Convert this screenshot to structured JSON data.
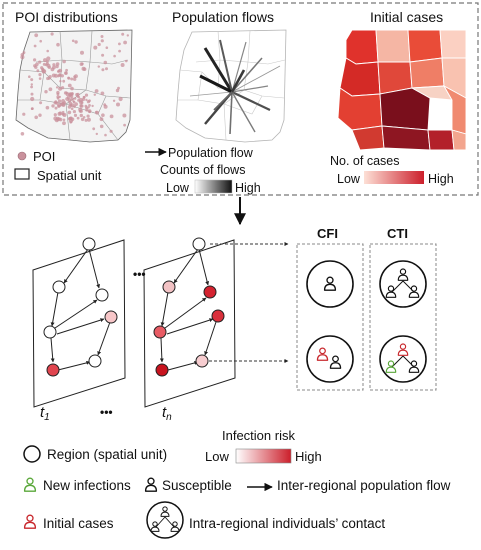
{
  "top_panel": {
    "poi": {
      "title": "POI distributions",
      "legend_poi": "POI",
      "legend_unit": "Spatial unit"
    },
    "flows": {
      "title": "Population flows",
      "legend_flow": "Population flow",
      "legend_counts": "Counts of flows",
      "low": "Low",
      "high": "High"
    },
    "cases": {
      "title": "Initial cases",
      "legend_title": "No. of cases",
      "low": "Low",
      "high": "High"
    }
  },
  "middle": {
    "ellipsis_top": "•••",
    "ellipsis_bottom": "•••",
    "label_t1": "t",
    "label_t1_sub": "1",
    "label_tn": "t",
    "label_tn_sub": "n",
    "cfi_label": "CFI",
    "cti_label": "CTI"
  },
  "legend": {
    "infection_risk": "Infection risk",
    "low": "Low",
    "high": "High",
    "region": "Region (spatial unit)",
    "new_infections": "New infections",
    "susceptible": "Susceptible",
    "flow": "Inter-regional population flow",
    "initial_cases": "Initial cases",
    "contact": "Intra-regional individuals’ contact"
  },
  "colors": {
    "dash_border": "#777777",
    "poi_dot": "#c9919c",
    "initial_red": "#c8282d",
    "new_green": "#5aa83a",
    "risk_low": "#ffffff",
    "risk_high": "#cc1f2b"
  }
}
